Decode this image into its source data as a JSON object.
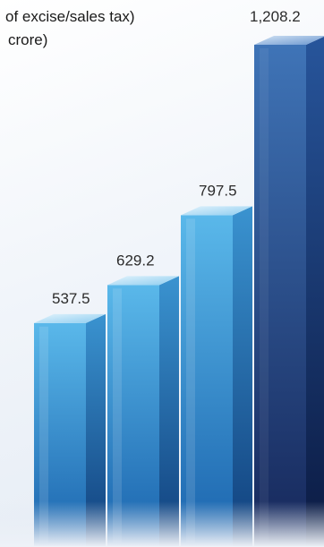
{
  "chart_data": {
    "type": "bar",
    "title_lines": [
      "of excise/sales tax)",
      "crore)"
    ],
    "values": [
      537.5,
      629.2,
      797.5,
      1208.2
    ],
    "value_labels": [
      "537.5",
      "629.2",
      "797.5",
      "1,208.2"
    ],
    "ylim": [
      0,
      1300
    ],
    "grid": false,
    "legend": "none"
  },
  "colors": {
    "bar_front_light": "#5ab8ea",
    "bar_front_dark": "#1a63ad",
    "last_bar_front_light": "#3f74b7",
    "last_bar_front_dark": "#16275a"
  }
}
